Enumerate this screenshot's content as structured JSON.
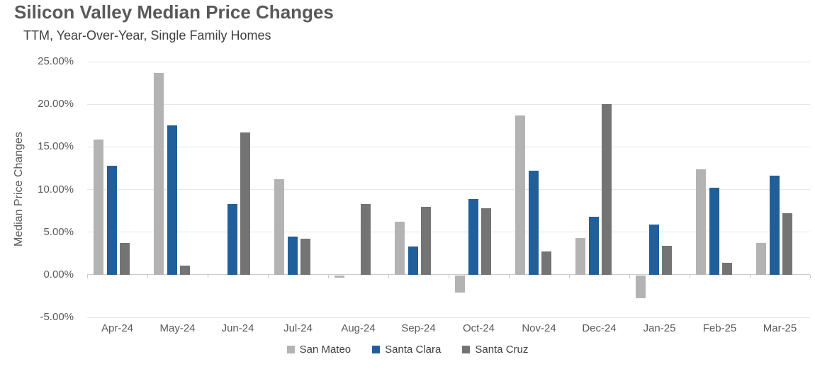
{
  "chart_data": {
    "type": "bar",
    "title": "Silicon Valley Median Price Changes",
    "subtitle": "TTM, Year-Over-Year, Single Family Homes",
    "ylabel": "Median Price Changes",
    "categories": [
      "Apr-24",
      "May-24",
      "Jun-24",
      "Jul-24",
      "Aug-24",
      "Sep-24",
      "Oct-24",
      "Nov-24",
      "Dec-24",
      "Jan-25",
      "Feb-25",
      "Mar-25"
    ],
    "series": [
      {
        "name": "San Mateo",
        "color": "#b3b3b3",
        "values": [
          15.9,
          23.7,
          null,
          11.2,
          -0.3,
          6.2,
          -2.0,
          18.7,
          4.3,
          -2.7,
          12.4,
          3.7
        ]
      },
      {
        "name": "Santa Clara",
        "color": "#215f9a",
        "values": [
          12.8,
          17.5,
          8.3,
          4.5,
          null,
          3.3,
          8.9,
          12.2,
          6.8,
          5.9,
          10.2,
          11.6
        ]
      },
      {
        "name": "Santa Cruz",
        "color": "#747474",
        "values": [
          3.7,
          1.1,
          16.7,
          4.2,
          8.3,
          8.0,
          7.8,
          2.7,
          20.0,
          3.4,
          1.4,
          7.2
        ]
      }
    ],
    "y_ticks": [
      25,
      20,
      15,
      10,
      5,
      0,
      -5
    ],
    "y_tick_labels": [
      "25.00%",
      "20.00%",
      "15.00%",
      "10.00%",
      "5.00%",
      "0.00%",
      "-5.00%"
    ],
    "ylim": [
      -5,
      25
    ],
    "grid": true,
    "legend_position": "bottom",
    "axis_color": "#cccccc",
    "gridline_color": "#e7e7e7"
  }
}
